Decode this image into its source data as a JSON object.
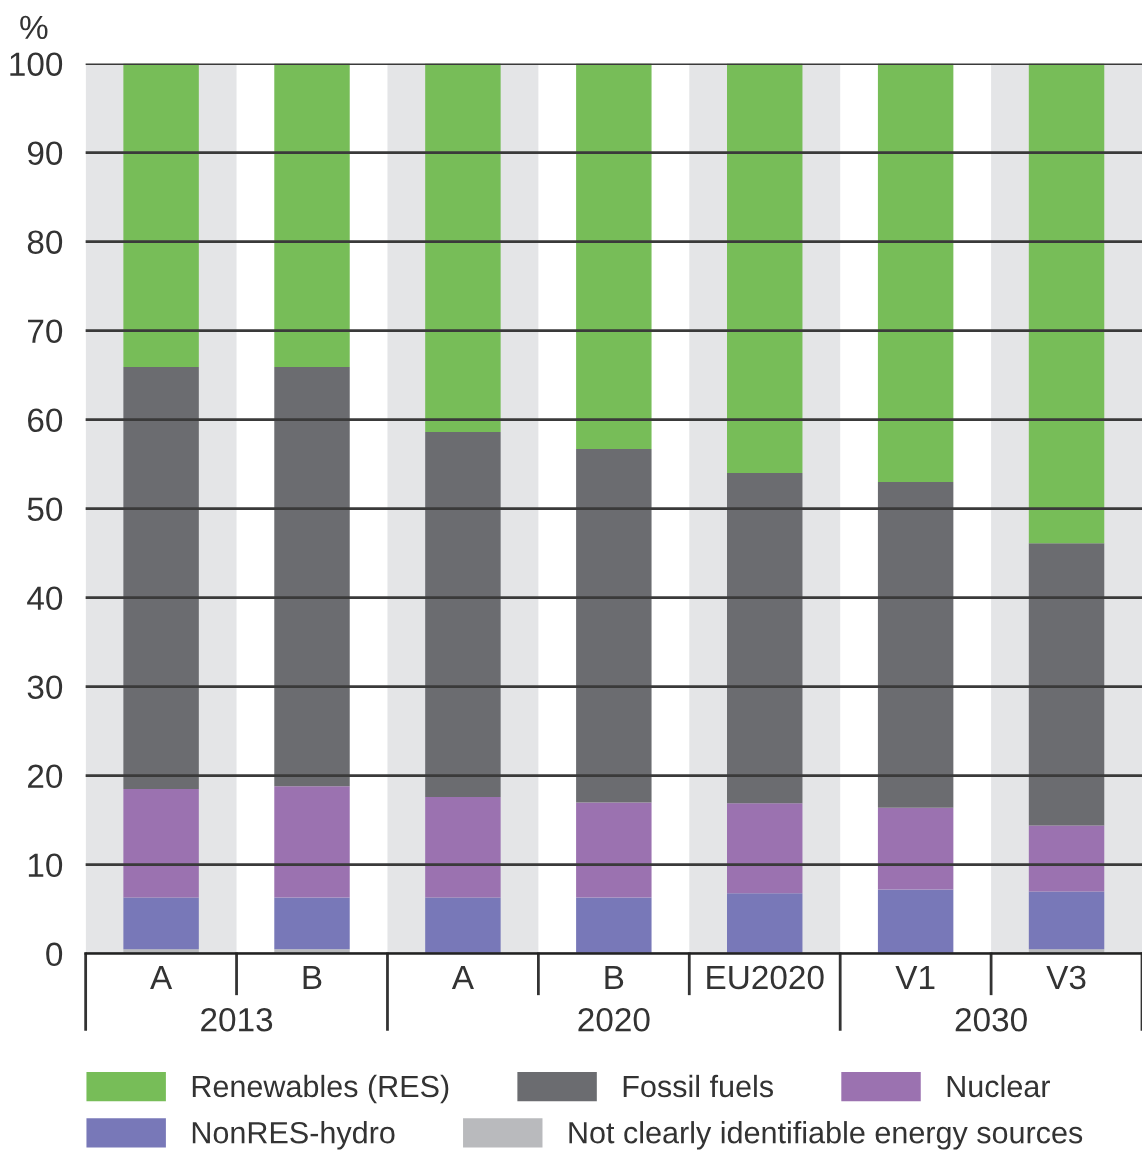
{
  "chart_data": {
    "type": "bar",
    "stacked": true,
    "ylabel": "%",
    "categories": [
      "A",
      "B",
      "A",
      "B",
      "EU2020",
      "V1",
      "V3"
    ],
    "annotations": [
      "2013",
      "2020",
      "2030"
    ],
    "series": [
      {
        "name": "Not clearly identifiable energy sources",
        "color": "#b9babd",
        "values": [
          0.5,
          0.5,
          null,
          null,
          null,
          null,
          0.5
        ]
      },
      {
        "name": "NonRES-hydro",
        "color": "#7878b8",
        "values": [
          5.8,
          5.8,
          6.3,
          6.3,
          6.8,
          7.2,
          6.5
        ]
      },
      {
        "name": "Nuclear",
        "color": "#9b72b0",
        "values": [
          12.2,
          12.5,
          11.3,
          10.7,
          10.1,
          9.2,
          7.4
        ]
      },
      {
        "name": "Fossil fuels",
        "color": "#6b6c70",
        "values": [
          47.4,
          47.1,
          41.0,
          39.7,
          37.1,
          36.6,
          31.7
        ]
      },
      {
        "name": "Renewables (RES)",
        "color": "#77bd58",
        "values": [
          34.1,
          34.1,
          41.4,
          43.3,
          46.0,
          47.0,
          53.9
        ]
      }
    ],
    "ylim": [
      0,
      100
    ],
    "yticks": [
      0,
      10,
      20,
      30,
      40,
      50,
      60,
      70,
      80,
      90,
      100
    ],
    "grid": "y",
    "legend": "bottom"
  }
}
